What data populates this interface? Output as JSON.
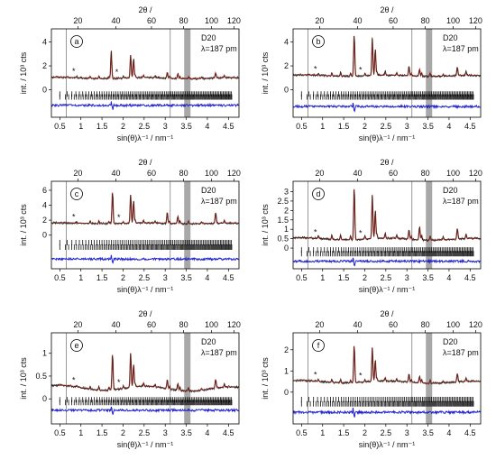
{
  "figure": {
    "instrument": "D20",
    "wavelength_label": "λ=187 pm",
    "top_axis_label": "2θ /",
    "bottom_axis_label": "sin(θ)λ⁻¹ / nm⁻¹",
    "y_axis_label": "int. / 10³ cts"
  },
  "colors": {
    "observed": "#222222",
    "calculated": "#c0392b",
    "difference": "#2222cc",
    "excluded_region": "#999999",
    "panel_marker_lines": "#555555",
    "reflection_ticks": "#111111"
  },
  "chart_data": [
    {
      "panel": "a",
      "type": "line",
      "title": "",
      "xlabel": "sin(θ)λ⁻¹ / nm⁻¹",
      "ylabel": "int. / 10³ cts",
      "xlim": [
        0.3,
        4.75
      ],
      "ylim": [
        -2.3,
        5.1
      ],
      "x_ticks": [
        0.5,
        1,
        1.5,
        2,
        2.5,
        3,
        3.5,
        4,
        4.5
      ],
      "y_ticks": [
        0,
        2,
        4
      ],
      "top_axis": {
        "label": "2θ /",
        "ticks": [
          20,
          40,
          60,
          80,
          100,
          120
        ]
      },
      "baseline": 1.0,
      "difference_offset": -1.3,
      "tick_rows": [
        -0.35,
        -0.6
      ],
      "peaks": [
        [
          1.72,
          2.3
        ],
        [
          2.18,
          1.9
        ],
        [
          2.25,
          1.6
        ],
        [
          3.05,
          0.5
        ],
        [
          3.3,
          0.4
        ],
        [
          4.2,
          0.3
        ]
      ],
      "stars": [
        0.83,
        1.85
      ],
      "excluded_region": [
        3.45,
        3.6
      ],
      "marker_lines": [
        0.65,
        3.12
      ]
    },
    {
      "panel": "b",
      "type": "line",
      "title": "",
      "xlabel": "sin(θ)λ⁻¹ / nm⁻¹",
      "ylabel": "int. / 10³ cts",
      "xlim": [
        0.3,
        4.75
      ],
      "ylim": [
        -2.3,
        5.1
      ],
      "x_ticks": [
        0.5,
        1,
        1.5,
        2,
        2.5,
        3,
        3.5,
        4,
        4.5
      ],
      "y_ticks": [
        0,
        2,
        4
      ],
      "top_axis": {
        "label": "2θ /",
        "ticks": [
          20,
          40,
          60,
          80,
          100,
          120
        ]
      },
      "baseline": 1.2,
      "difference_offset": -1.4,
      "tick_rows": [
        -0.35,
        -0.6
      ],
      "peaks": [
        [
          1.75,
          3.5
        ],
        [
          2.18,
          3.1
        ],
        [
          2.25,
          2.2
        ],
        [
          3.05,
          0.8
        ],
        [
          3.3,
          0.6
        ],
        [
          4.2,
          0.5
        ]
      ],
      "stars": [
        0.83,
        1.9
      ],
      "excluded_region": [
        3.45,
        3.6
      ],
      "marker_lines": [
        0.65,
        3.12
      ]
    },
    {
      "panel": "c",
      "type": "line",
      "title": "",
      "xlabel": "sin(θ)λ⁻¹ / nm⁻¹",
      "ylabel": "int. / 10³ cts",
      "xlim": [
        0.3,
        4.75
      ],
      "ylim": [
        -4.5,
        7.2
      ],
      "x_ticks": [
        0.5,
        1,
        1.5,
        2,
        2.5,
        3,
        3.5,
        4,
        4.5
      ],
      "y_ticks": [
        0,
        2,
        4,
        6
      ],
      "top_axis": {
        "label": "2θ /",
        "ticks": [
          20,
          40,
          60,
          80,
          100,
          120
        ]
      },
      "baseline": 1.6,
      "difference_offset": -3.2,
      "tick_rows": [
        -1.0,
        -1.6
      ],
      "peaks": [
        [
          1.75,
          4.3
        ],
        [
          2.18,
          3.8
        ],
        [
          2.25,
          3.0
        ],
        [
          3.05,
          1.5
        ],
        [
          3.3,
          1.0
        ],
        [
          4.2,
          1.2
        ]
      ],
      "stars": [
        0.83,
        1.9
      ],
      "excluded_region": [
        3.45,
        3.6
      ],
      "marker_lines": [
        0.65,
        3.12
      ]
    },
    {
      "panel": "d",
      "type": "line",
      "title": "",
      "xlabel": "sin(θ)λ⁻¹ / nm⁻¹",
      "ylabel": "int. / 10³ cts",
      "xlim": [
        0.3,
        4.75
      ],
      "ylim": [
        -1.1,
        3.55
      ],
      "x_ticks": [
        0.5,
        1,
        1.5,
        2,
        2.5,
        3,
        3.5,
        4,
        4.5
      ],
      "y_ticks": [
        0,
        0.5,
        1,
        1.5,
        2,
        2.5,
        3
      ],
      "top_axis": {
        "label": "2θ /",
        "ticks": [
          20,
          40,
          60,
          80,
          100,
          120
        ]
      },
      "baseline": 0.5,
      "difference_offset": -0.7,
      "tick_rows": [
        -0.1,
        -0.3
      ],
      "peaks": [
        [
          1.75,
          2.8
        ],
        [
          2.18,
          2.3
        ],
        [
          2.25,
          1.5
        ],
        [
          3.05,
          0.5
        ],
        [
          3.3,
          0.7
        ],
        [
          4.2,
          0.4
        ]
      ],
      "stars": [
        0.83,
        1.9
      ],
      "excluded_region": [
        3.45,
        3.6
      ],
      "marker_lines": [
        0.65,
        3.12
      ]
    },
    {
      "panel": "e",
      "type": "line",
      "title": "",
      "xlabel": "sin(θ)λ⁻¹ / nm⁻¹",
      "ylabel": "int. / 10³ cts",
      "xlim": [
        0.3,
        4.75
      ],
      "ylim": [
        -0.55,
        1.45
      ],
      "x_ticks": [
        0.5,
        1,
        1.5,
        2,
        2.5,
        3,
        3.5,
        4,
        4.5
      ],
      "y_ticks": [
        0,
        0.5,
        1
      ],
      "top_axis": {
        "label": "2θ /",
        "ticks": [
          20,
          40,
          60,
          80,
          100,
          120
        ]
      },
      "baseline": 0.25,
      "difference_offset": -0.25,
      "tick_rows": [
        -0.02,
        -0.08
      ],
      "peaks": [
        [
          1.75,
          0.8
        ],
        [
          2.18,
          0.75
        ],
        [
          2.25,
          0.5
        ],
        [
          3.05,
          0.2
        ],
        [
          3.3,
          0.15
        ],
        [
          4.2,
          0.15
        ]
      ],
      "stars": [
        0.83,
        1.9
      ],
      "excluded_region": [
        3.45,
        3.6
      ],
      "marker_lines": [
        0.65,
        3.12
      ]
    },
    {
      "panel": "f",
      "type": "line",
      "title": "",
      "xlabel": "sin(θ)λ⁻¹ / nm⁻¹",
      "ylabel": "int. / 10³ cts",
      "xlim": [
        0.3,
        4.75
      ],
      "ylim": [
        -1.5,
        2.8
      ],
      "x_ticks": [
        0.5,
        1,
        1.5,
        2,
        2.5,
        3,
        3.5,
        4,
        4.5
      ],
      "y_ticks": [
        0,
        1,
        2
      ],
      "top_axis": {
        "label": "2θ /",
        "ticks": [
          20,
          40,
          60,
          80,
          100,
          120
        ]
      },
      "baseline": 0.5,
      "difference_offset": -0.95,
      "tick_rows": [
        -0.35,
        -0.55
      ],
      "peaks": [
        [
          1.75,
          1.8
        ],
        [
          2.18,
          1.6
        ],
        [
          2.25,
          1.0
        ],
        [
          3.05,
          0.4
        ],
        [
          3.3,
          0.3
        ],
        [
          4.2,
          0.3
        ]
      ],
      "stars": [
        0.83,
        1.9
      ],
      "excluded_region": [
        3.45,
        3.6
      ],
      "marker_lines": [
        0.65,
        3.12
      ]
    }
  ]
}
